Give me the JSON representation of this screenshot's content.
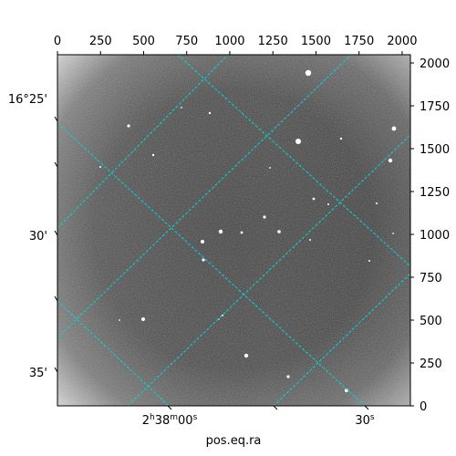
{
  "chart_data": {
    "type": "image",
    "xlabel": "pos.eq.ra",
    "pixel_axis_top": {
      "range": [
        0,
        2048
      ],
      "ticks": [
        0,
        250,
        500,
        750,
        1000,
        1250,
        1500,
        1750,
        2000
      ]
    },
    "pixel_axis_right": {
      "range": [
        0,
        2048
      ],
      "ticks": [
        0,
        250,
        500,
        750,
        1000,
        1250,
        1500,
        1750,
        2000
      ]
    },
    "dec_tick_labels": [
      "16°25'",
      "30'",
      "35'"
    ],
    "ra_tick_labels": [
      "2h38m00s",
      "30s"
    ],
    "grid": "on",
    "grid_color": "#00d8d8"
  }
}
